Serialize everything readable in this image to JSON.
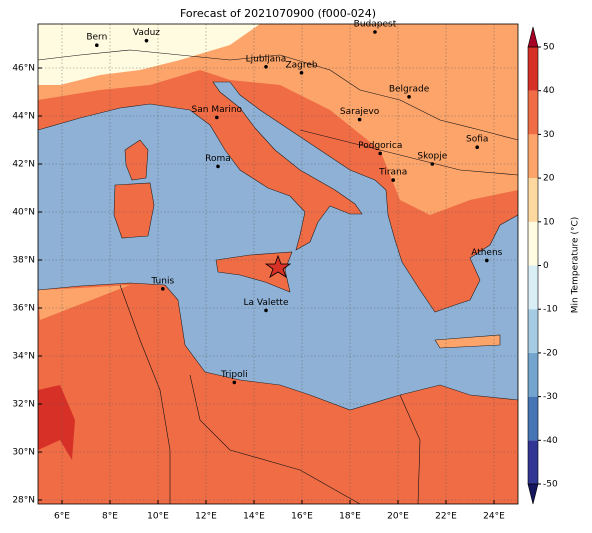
{
  "map": {
    "title": "Forecast of 2021070900 (f000-024)",
    "lon_ticks": [
      "6°E",
      "8°E",
      "10°E",
      "12°E",
      "14°E",
      "16°E",
      "18°E",
      "20°E",
      "22°E",
      "24°E"
    ],
    "lat_ticks": [
      "28°N",
      "30°N",
      "32°N",
      "34°N",
      "36°N",
      "38°N",
      "40°N",
      "42°N",
      "44°N",
      "46°N"
    ],
    "cities": [
      "Bern",
      "Vaduz",
      "Budapest",
      "Ljubljana",
      "Zagreb",
      "Belgrade",
      "San Marino",
      "Sarajevo",
      "Sofia",
      "Roma",
      "Podgorica",
      "Skopje",
      "Tirana",
      "Athens",
      "Tunis",
      "La Valette",
      "Tripoli"
    ]
  },
  "colorbar": {
    "label": "Min Temperature (°C)",
    "lim": [
      -50,
      50
    ],
    "ticks": [
      -50,
      -40,
      -30,
      -20,
      -10,
      0,
      10,
      20,
      30,
      40,
      50
    ],
    "colors": [
      "#313695",
      "#4575b4",
      "#74a5cf",
      "#a6cce3",
      "#d9eef5",
      "#fffbe0",
      "#fdd9a0",
      "#fca46a",
      "#f06c45",
      "#d73027"
    ],
    "under_color": "#14165e",
    "over_color": "#a50026"
  }
}
